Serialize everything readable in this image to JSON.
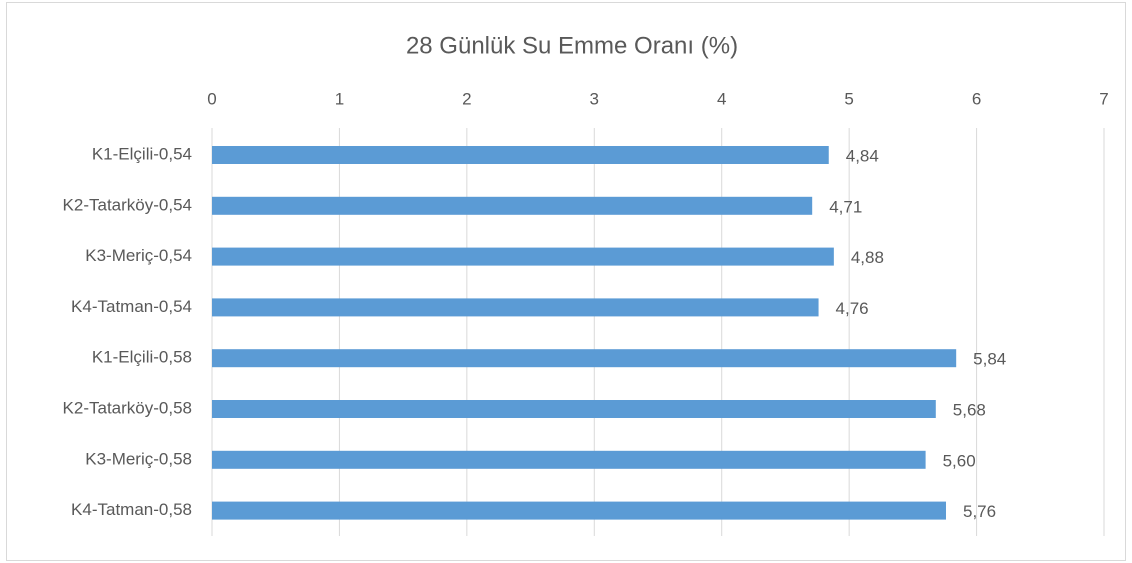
{
  "chart_data": {
    "type": "bar",
    "orientation": "horizontal",
    "title": "28 Günlük Su Emme Oranı (%)",
    "categories": [
      "K1-Elçili-0,54",
      "K2-Tatarköy-0,54",
      "K3-Meriç-0,54",
      "K4-Tatman-0,54",
      "K1-Elçili-0,58",
      "K2-Tatarköy-0,58",
      "K3-Meriç-0,58",
      "K4-Tatman-0,58"
    ],
    "values": [
      4.84,
      4.71,
      4.88,
      4.76,
      5.84,
      5.68,
      5.6,
      5.76
    ],
    "value_labels": [
      "4,84",
      "4,71",
      "4,88",
      "4,76",
      "5,84",
      "5,68",
      "5,60",
      "5,76"
    ],
    "color": "#5b9bd5",
    "xlim": [
      0,
      7
    ],
    "xticks": [
      0,
      1,
      2,
      3,
      4,
      5,
      6,
      7
    ],
    "grid": true
  }
}
